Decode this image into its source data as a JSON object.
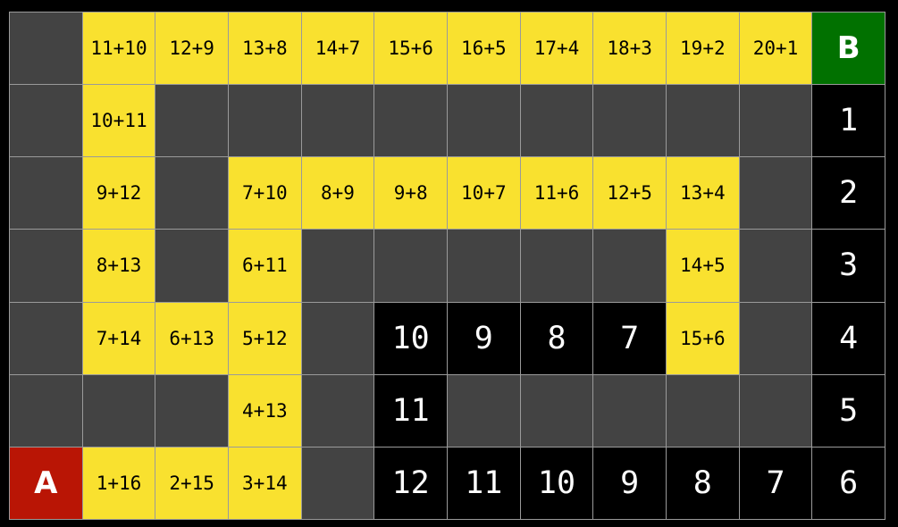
{
  "colors": {
    "wall": "#434343",
    "open": "#f9e12f",
    "path": "#000000",
    "start": "#b91505",
    "goal": "#017100"
  },
  "grid": [
    [
      {
        "t": "wall",
        "v": ""
      },
      {
        "t": "open",
        "v": "11+10"
      },
      {
        "t": "open",
        "v": "12+9"
      },
      {
        "t": "open",
        "v": "13+8"
      },
      {
        "t": "open",
        "v": "14+7"
      },
      {
        "t": "open",
        "v": "15+6"
      },
      {
        "t": "open",
        "v": "16+5"
      },
      {
        "t": "open",
        "v": "17+4"
      },
      {
        "t": "open",
        "v": "18+3"
      },
      {
        "t": "open",
        "v": "19+2"
      },
      {
        "t": "open",
        "v": "20+1"
      },
      {
        "t": "goal",
        "v": "B"
      }
    ],
    [
      {
        "t": "wall",
        "v": ""
      },
      {
        "t": "open",
        "v": "10+11"
      },
      {
        "t": "wall",
        "v": ""
      },
      {
        "t": "wall",
        "v": ""
      },
      {
        "t": "wall",
        "v": ""
      },
      {
        "t": "wall",
        "v": ""
      },
      {
        "t": "wall",
        "v": ""
      },
      {
        "t": "wall",
        "v": ""
      },
      {
        "t": "wall",
        "v": ""
      },
      {
        "t": "wall",
        "v": ""
      },
      {
        "t": "wall",
        "v": ""
      },
      {
        "t": "path",
        "v": "1"
      }
    ],
    [
      {
        "t": "wall",
        "v": ""
      },
      {
        "t": "open",
        "v": "9+12"
      },
      {
        "t": "wall",
        "v": ""
      },
      {
        "t": "open",
        "v": "7+10"
      },
      {
        "t": "open",
        "v": "8+9"
      },
      {
        "t": "open",
        "v": "9+8"
      },
      {
        "t": "open",
        "v": "10+7"
      },
      {
        "t": "open",
        "v": "11+6"
      },
      {
        "t": "open",
        "v": "12+5"
      },
      {
        "t": "open",
        "v": "13+4"
      },
      {
        "t": "wall",
        "v": ""
      },
      {
        "t": "path",
        "v": "2"
      }
    ],
    [
      {
        "t": "wall",
        "v": ""
      },
      {
        "t": "open",
        "v": "8+13"
      },
      {
        "t": "wall",
        "v": ""
      },
      {
        "t": "open",
        "v": "6+11"
      },
      {
        "t": "wall",
        "v": ""
      },
      {
        "t": "wall",
        "v": ""
      },
      {
        "t": "wall",
        "v": ""
      },
      {
        "t": "wall",
        "v": ""
      },
      {
        "t": "wall",
        "v": ""
      },
      {
        "t": "open",
        "v": "14+5"
      },
      {
        "t": "wall",
        "v": ""
      },
      {
        "t": "path",
        "v": "3"
      }
    ],
    [
      {
        "t": "wall",
        "v": ""
      },
      {
        "t": "open",
        "v": "7+14"
      },
      {
        "t": "open",
        "v": "6+13"
      },
      {
        "t": "open",
        "v": "5+12"
      },
      {
        "t": "wall",
        "v": ""
      },
      {
        "t": "path",
        "v": "10"
      },
      {
        "t": "path",
        "v": "9"
      },
      {
        "t": "path",
        "v": "8"
      },
      {
        "t": "path",
        "v": "7"
      },
      {
        "t": "open",
        "v": "15+6"
      },
      {
        "t": "wall",
        "v": ""
      },
      {
        "t": "path",
        "v": "4"
      }
    ],
    [
      {
        "t": "wall",
        "v": ""
      },
      {
        "t": "wall",
        "v": ""
      },
      {
        "t": "wall",
        "v": ""
      },
      {
        "t": "open",
        "v": "4+13"
      },
      {
        "t": "wall",
        "v": ""
      },
      {
        "t": "path",
        "v": "11"
      },
      {
        "t": "wall",
        "v": ""
      },
      {
        "t": "wall",
        "v": ""
      },
      {
        "t": "wall",
        "v": ""
      },
      {
        "t": "wall",
        "v": ""
      },
      {
        "t": "wall",
        "v": ""
      },
      {
        "t": "path",
        "v": "5"
      }
    ],
    [
      {
        "t": "start",
        "v": "A"
      },
      {
        "t": "open",
        "v": "1+16"
      },
      {
        "t": "open",
        "v": "2+15"
      },
      {
        "t": "open",
        "v": "3+14"
      },
      {
        "t": "wall",
        "v": ""
      },
      {
        "t": "path",
        "v": "12"
      },
      {
        "t": "path",
        "v": "11"
      },
      {
        "t": "path",
        "v": "10"
      },
      {
        "t": "path",
        "v": "9"
      },
      {
        "t": "path",
        "v": "8"
      },
      {
        "t": "path",
        "v": "7"
      },
      {
        "t": "path",
        "v": "6"
      }
    ]
  ]
}
